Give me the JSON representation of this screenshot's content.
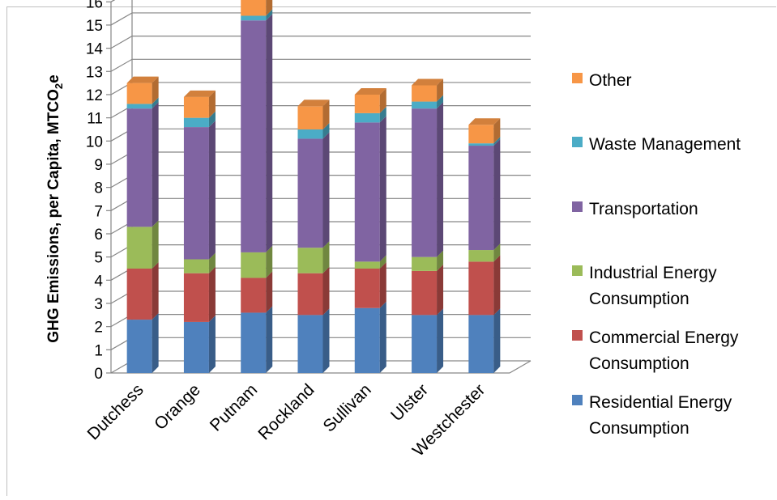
{
  "chart_data": {
    "type": "bar",
    "stacked": true,
    "three_d": true,
    "title": "",
    "xlabel": "",
    "ylabel": {
      "main": "GHG Emissions, per Capita, MTCO",
      "subscript": "2",
      "suffix": "e"
    },
    "ylim": [
      0,
      16
    ],
    "yticks": [
      "0",
      "1",
      "2",
      "3",
      "4",
      "5",
      "6",
      "7",
      "8",
      "9",
      "10",
      "11",
      "12",
      "13",
      "14",
      "15",
      "16"
    ],
    "grid": true,
    "legend_position": "right",
    "categories": [
      "Dutchess",
      "Orange",
      "Putnam",
      "Rockland",
      "Sullivan",
      "Ulster",
      "Westchester"
    ],
    "series": [
      {
        "name": "Residential Energy Consumption",
        "color": "#4f81bd",
        "values": [
          2.3,
          2.2,
          2.6,
          2.5,
          2.8,
          2.5,
          2.5
        ]
      },
      {
        "name": "Commercial Energy Consumption",
        "color": "#c0504d",
        "values": [
          2.2,
          2.1,
          1.5,
          1.8,
          1.7,
          1.9,
          2.3
        ]
      },
      {
        "name": "Industrial Energy Consumption",
        "color": "#9bbb59",
        "values": [
          1.8,
          0.6,
          1.1,
          1.1,
          0.3,
          0.6,
          0.5
        ]
      },
      {
        "name": "Transportation",
        "color": "#8064a2",
        "values": [
          5.1,
          5.7,
          10.0,
          4.7,
          6.0,
          6.4,
          4.5
        ]
      },
      {
        "name": "Waste Management",
        "color": "#4bacc6",
        "values": [
          0.2,
          0.4,
          0.2,
          0.4,
          0.4,
          0.3,
          0.1
        ]
      },
      {
        "name": "Other",
        "color": "#f79646",
        "values": [
          0.9,
          0.9,
          0.7,
          1.0,
          0.8,
          0.7,
          0.8
        ]
      }
    ]
  }
}
